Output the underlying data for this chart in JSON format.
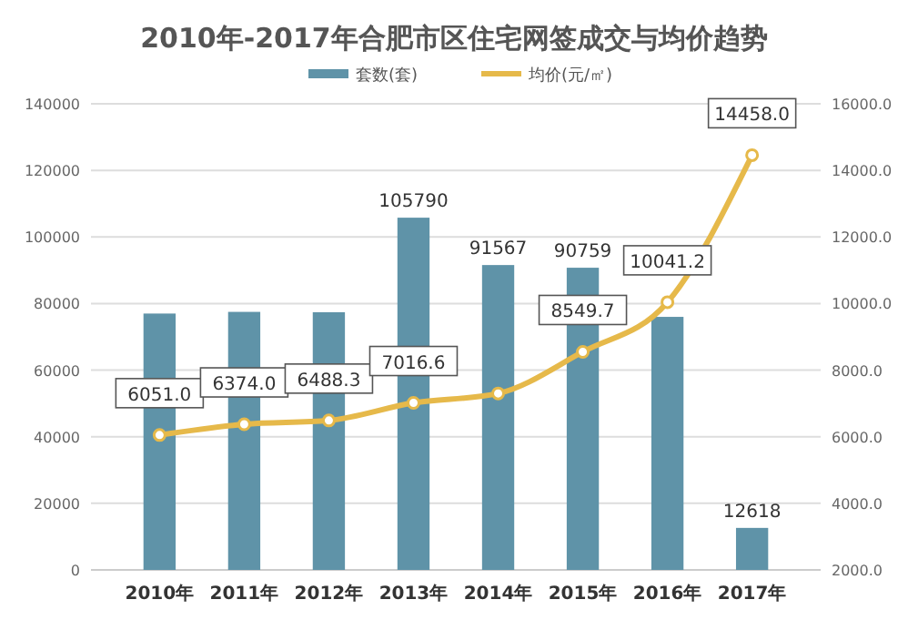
{
  "chart_data": {
    "type": "bar",
    "title": "2010年-2017年合肥市区住宅网签成交与均价趋势",
    "categories": [
      "2010年",
      "2011年",
      "2012年",
      "2013年",
      "2014年",
      "2015年",
      "2016年",
      "2017年"
    ],
    "series": [
      {
        "name": "套数(套)",
        "color": "#5f93a8",
        "values": [
          77000,
          77500,
          77400,
          105790,
          91567,
          90759,
          76000,
          12618
        ],
        "value_labels": [
          null,
          null,
          null,
          "105790",
          "91567",
          "90759",
          null,
          "12618"
        ]
      },
      {
        "name": "均价(元/㎡)",
        "type": "line",
        "axis": "y2",
        "color": "#e6b94a",
        "marker": "circle",
        "values": [
          6051.0,
          6374.0,
          6488.3,
          7016.6,
          7300,
          8549.7,
          10041.2,
          14458.0
        ],
        "value_labels": [
          "6051.0",
          "6374.0",
          "6488.3",
          "7016.6",
          null,
          "8549.7",
          "10041.2",
          "14458.0"
        ]
      }
    ],
    "ylim": [
      0,
      140000
    ],
    "yticks": [
      0,
      20000,
      40000,
      60000,
      80000,
      100000,
      120000,
      140000
    ],
    "y2lim": [
      2000,
      16000
    ],
    "y2ticks": [
      {
        "value": 2000,
        "label": "2000.0"
      },
      {
        "value": 4000,
        "label": "4000.0"
      },
      {
        "value": 6000,
        "label": "6000.0"
      },
      {
        "value": 8000,
        "label": "8000.0"
      },
      {
        "value": 10000,
        "label": "10000.0"
      },
      {
        "value": 12000,
        "label": "12000.0"
      },
      {
        "value": 14000,
        "label": "14000.0"
      },
      {
        "value": 16000,
        "label": "16000.0"
      }
    ],
    "grid": "y",
    "legend": "top"
  }
}
